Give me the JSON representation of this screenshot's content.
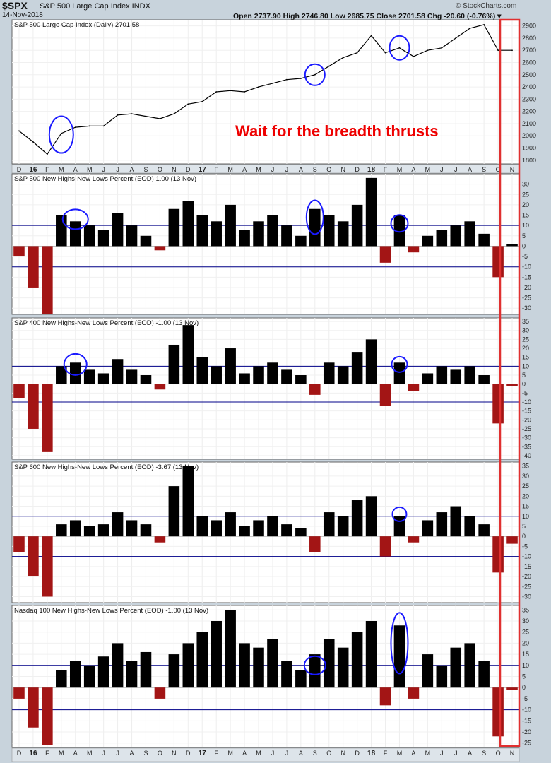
{
  "header": {
    "symbol": "$SPX",
    "name": "S&P 500 Large Cap Index INDX",
    "date": "14-Nov-2018",
    "quote": "Open 2737.90  High 2746.80  Low 2685.75  Close 2701.58  Chg -20.60 (-0.76%) ▾",
    "brand": "© StockCharts.com"
  },
  "annotation": "Wait for the breadth thrusts",
  "x_axis_labels": [
    "D",
    "16",
    "F",
    "M",
    "A",
    "M",
    "J",
    "J",
    "A",
    "S",
    "O",
    "N",
    "D",
    "17",
    "F",
    "M",
    "A",
    "M",
    "J",
    "J",
    "A",
    "S",
    "O",
    "N",
    "D",
    "18",
    "F",
    "M",
    "A",
    "M",
    "J",
    "J",
    "A",
    "S",
    "O",
    "N"
  ],
  "colors": {
    "price_line": "#000000",
    "positive": "#000000",
    "negative": "#a31515",
    "highlight_circle": "#1a1aff",
    "highlight_box": "#e03030",
    "annotation": "#ee0000",
    "reference_lines": "#000088"
  },
  "chart_data": [
    {
      "type": "line",
      "title": "S&P 500 Large Cap Index (Daily) 2701.58",
      "y_ticks": [
        1800,
        1900,
        2000,
        2100,
        2200,
        2300,
        2400,
        2500,
        2600,
        2700,
        2800,
        2900
      ],
      "ylim": [
        1770,
        2950
      ],
      "x_range": [
        "2015-12",
        "2018-11"
      ],
      "x": [
        "2015-12",
        "2016-01",
        "2016-02",
        "2016-03",
        "2016-04",
        "2016-05",
        "2016-06",
        "2016-07",
        "2016-08",
        "2016-09",
        "2016-10",
        "2016-11",
        "2016-12",
        "2017-01",
        "2017-02",
        "2017-03",
        "2017-04",
        "2017-05",
        "2017-06",
        "2017-07",
        "2017-08",
        "2017-09",
        "2017-10",
        "2017-11",
        "2017-12",
        "2018-01",
        "2018-02",
        "2018-03",
        "2018-04",
        "2018-05",
        "2018-06",
        "2018-07",
        "2018-08",
        "2018-09",
        "2018-10",
        "2018-11"
      ],
      "values": [
        2040,
        1950,
        1850,
        2020,
        2070,
        2080,
        2080,
        2170,
        2180,
        2160,
        2140,
        2180,
        2260,
        2280,
        2360,
        2370,
        2360,
        2400,
        2430,
        2460,
        2470,
        2500,
        2570,
        2640,
        2680,
        2820,
        2680,
        2720,
        2650,
        2700,
        2720,
        2800,
        2880,
        2910,
        2700,
        2700
      ]
    },
    {
      "type": "bar",
      "title": "S&P 500 New Highs-New Lows Percent (EOD) 1.00 (13 Nov)",
      "y_ticks": [
        30,
        25,
        20,
        15,
        10,
        5,
        0,
        -5,
        -10,
        -15,
        -20,
        -25,
        -30
      ],
      "ylim": [
        -33,
        35
      ],
      "reference_lines": [
        10,
        -10
      ],
      "x": [
        "2015-12",
        "2016-01",
        "2016-02",
        "2016-03",
        "2016-04",
        "2016-05",
        "2016-06",
        "2016-07",
        "2016-08",
        "2016-09",
        "2016-10",
        "2016-11",
        "2016-12",
        "2017-01",
        "2017-02",
        "2017-03",
        "2017-04",
        "2017-05",
        "2017-06",
        "2017-07",
        "2017-08",
        "2017-09",
        "2017-10",
        "2017-11",
        "2017-12",
        "2018-01",
        "2018-02",
        "2018-03",
        "2018-04",
        "2018-05",
        "2018-06",
        "2018-07",
        "2018-08",
        "2018-09",
        "2018-10",
        "2018-11"
      ],
      "values": [
        -5,
        -20,
        -33,
        15,
        12,
        10,
        8,
        16,
        10,
        5,
        -2,
        18,
        22,
        15,
        12,
        20,
        8,
        12,
        15,
        10,
        5,
        18,
        15,
        12,
        20,
        33,
        -8,
        15,
        -3,
        5,
        8,
        10,
        12,
        6,
        -15,
        1
      ]
    },
    {
      "type": "bar",
      "title": "S&P 400 New Highs-New Lows Percent (EOD) -1.00 (13 Nov)",
      "y_ticks": [
        35,
        30,
        25,
        20,
        15,
        10,
        5,
        0,
        -5,
        -10,
        -15,
        -20,
        -25,
        -30,
        -35,
        -40
      ],
      "ylim": [
        -42,
        37
      ],
      "reference_lines": [
        10,
        -10
      ],
      "x": [
        "2015-12",
        "2016-01",
        "2016-02",
        "2016-03",
        "2016-04",
        "2016-05",
        "2016-06",
        "2016-07",
        "2016-08",
        "2016-09",
        "2016-10",
        "2016-11",
        "2016-12",
        "2017-01",
        "2017-02",
        "2017-03",
        "2017-04",
        "2017-05",
        "2017-06",
        "2017-07",
        "2017-08",
        "2017-09",
        "2017-10",
        "2017-11",
        "2017-12",
        "2018-01",
        "2018-02",
        "2018-03",
        "2018-04",
        "2018-05",
        "2018-06",
        "2018-07",
        "2018-08",
        "2018-09",
        "2018-10",
        "2018-11"
      ],
      "values": [
        -8,
        -25,
        -38,
        10,
        12,
        8,
        6,
        14,
        8,
        5,
        -3,
        22,
        33,
        15,
        10,
        20,
        6,
        10,
        12,
        8,
        5,
        -6,
        12,
        10,
        18,
        25,
        -12,
        12,
        -4,
        6,
        10,
        8,
        10,
        5,
        -22,
        -1
      ]
    },
    {
      "type": "bar",
      "title": "S&P 600 New Highs-New Lows Percent (EOD) -3.67 (13 Nov)",
      "y_ticks": [
        35,
        30,
        25,
        20,
        15,
        10,
        5,
        0,
        -5,
        -10,
        -15,
        -20,
        -25,
        -30
      ],
      "ylim": [
        -33,
        37
      ],
      "reference_lines": [
        10,
        -10
      ],
      "x": [
        "2015-12",
        "2016-01",
        "2016-02",
        "2016-03",
        "2016-04",
        "2016-05",
        "2016-06",
        "2016-07",
        "2016-08",
        "2016-09",
        "2016-10",
        "2016-11",
        "2016-12",
        "2017-01",
        "2017-02",
        "2017-03",
        "2017-04",
        "2017-05",
        "2017-06",
        "2017-07",
        "2017-08",
        "2017-09",
        "2017-10",
        "2017-11",
        "2017-12",
        "2018-01",
        "2018-02",
        "2018-03",
        "2018-04",
        "2018-05",
        "2018-06",
        "2018-07",
        "2018-08",
        "2018-09",
        "2018-10",
        "2018-11"
      ],
      "values": [
        -8,
        -20,
        -30,
        6,
        8,
        5,
        6,
        12,
        8,
        6,
        -3,
        25,
        35,
        10,
        8,
        12,
        5,
        8,
        10,
        6,
        4,
        -8,
        12,
        10,
        18,
        20,
        -10,
        10,
        -3,
        8,
        12,
        15,
        10,
        6,
        -18,
        -3.67
      ]
    },
    {
      "type": "bar",
      "title": "Nasdaq 100 New Highs-New Lows Percent (EOD) -1.00 (13 Nov)",
      "y_ticks": [
        35,
        30,
        25,
        20,
        15,
        10,
        5,
        0,
        -5,
        -10,
        -15,
        -20,
        -25
      ],
      "ylim": [
        -27,
        37
      ],
      "reference_lines": [
        10,
        -10
      ],
      "x": [
        "2015-12",
        "2016-01",
        "2016-02",
        "2016-03",
        "2016-04",
        "2016-05",
        "2016-06",
        "2016-07",
        "2016-08",
        "2016-09",
        "2016-10",
        "2016-11",
        "2016-12",
        "2017-01",
        "2017-02",
        "2017-03",
        "2017-04",
        "2017-05",
        "2017-06",
        "2017-07",
        "2017-08",
        "2017-09",
        "2017-10",
        "2017-11",
        "2017-12",
        "2018-01",
        "2018-02",
        "2018-03",
        "2018-04",
        "2018-05",
        "2018-06",
        "2018-07",
        "2018-08",
        "2018-09",
        "2018-10",
        "2018-11"
      ],
      "values": [
        -5,
        -18,
        -26,
        8,
        12,
        10,
        14,
        20,
        12,
        16,
        -5,
        15,
        20,
        25,
        30,
        35,
        20,
        18,
        22,
        12,
        8,
        15,
        22,
        18,
        25,
        30,
        -8,
        28,
        -5,
        15,
        10,
        18,
        20,
        12,
        -22,
        -1
      ]
    }
  ]
}
